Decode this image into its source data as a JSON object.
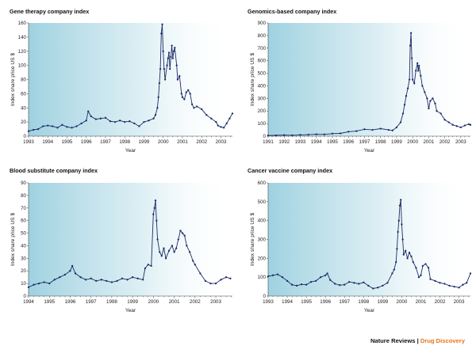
{
  "footer": {
    "journal": "Nature Reviews",
    "separator": " | ",
    "section": "Drug Discovery"
  },
  "colors": {
    "series": "#1b2b66",
    "panel_start": "#7fc2d6",
    "panel_end": "#ffffff",
    "footer_accent": "#e8741a"
  },
  "chart_data": [
    {
      "id": "gene",
      "type": "line",
      "title": "Gene therapy company index",
      "xlabel": "Year",
      "ylabel": "Index share price US $",
      "xlim": [
        1993.0,
        2003.6
      ],
      "ylim": [
        0,
        160
      ],
      "yticks": [
        0,
        20,
        40,
        60,
        80,
        100,
        120,
        140,
        160
      ],
      "xticks": [
        "1993",
        "1994",
        "1995",
        "1996",
        "1997",
        "1998",
        "1999",
        "2000",
        "2001",
        "2002",
        "2003"
      ],
      "x": [
        1993.0,
        1993.25,
        1993.5,
        1993.75,
        1994.0,
        1994.25,
        1994.5,
        1994.75,
        1995.0,
        1995.25,
        1995.5,
        1995.75,
        1996.0,
        1996.1,
        1996.25,
        1996.5,
        1996.75,
        1997.0,
        1997.25,
        1997.5,
        1997.75,
        1998.0,
        1998.25,
        1998.5,
        1998.75,
        1999.0,
        1999.25,
        1999.5,
        1999.6,
        1999.7,
        1999.75,
        1999.8,
        1999.85,
        1999.9,
        1999.95,
        2000.0,
        2000.05,
        2000.1,
        2000.2,
        2000.25,
        2000.3,
        2000.35,
        2000.4,
        2000.45,
        2000.5,
        2000.55,
        2000.6,
        2000.7,
        2000.75,
        2000.85,
        2000.95,
        2001.0,
        2001.1,
        2001.2,
        2001.3,
        2001.4,
        2001.5,
        2001.6,
        2001.75,
        2002.0,
        2002.25,
        2002.5,
        2002.75,
        2002.85,
        2003.0,
        2003.15,
        2003.3,
        2003.45,
        2003.6
      ],
      "y": [
        7,
        9,
        10,
        14,
        15,
        14,
        12,
        16,
        13,
        12,
        14,
        18,
        22,
        35,
        28,
        24,
        25,
        26,
        21,
        20,
        22,
        20,
        21,
        18,
        14,
        20,
        22,
        25,
        30,
        40,
        55,
        75,
        95,
        145,
        158,
        120,
        95,
        80,
        100,
        110,
        118,
        95,
        112,
        128,
        110,
        120,
        125,
        100,
        80,
        85,
        60,
        55,
        52,
        62,
        65,
        60,
        45,
        40,
        42,
        38,
        30,
        25,
        20,
        15,
        13,
        12,
        18,
        25,
        32
      ]
    },
    {
      "id": "genomics",
      "type": "line",
      "title": "Genomics-based company index",
      "xlabel": "Year",
      "ylabel": "Index share price US $",
      "xlim": [
        1991.0,
        2003.6
      ],
      "ylim": [
        0,
        900
      ],
      "yticks": [
        0,
        100,
        200,
        300,
        400,
        500,
        600,
        700,
        800,
        900
      ],
      "xticks": [
        "1991",
        "1992",
        "1993",
        "1994",
        "1995",
        "1996",
        "1997",
        "1998",
        "1999",
        "2000",
        "2001",
        "2002",
        "2003"
      ],
      "x": [
        1991.0,
        1991.5,
        1992.0,
        1992.5,
        1993.0,
        1993.5,
        1994.0,
        1994.5,
        1995.0,
        1995.5,
        1996.0,
        1996.5,
        1997.0,
        1997.5,
        1998.0,
        1998.5,
        1998.75,
        1999.0,
        1999.25,
        1999.4,
        1999.5,
        1999.6,
        1999.7,
        1999.8,
        1999.85,
        1999.9,
        1999.95,
        2000.0,
        2000.1,
        2000.2,
        2000.3,
        2000.35,
        2000.4,
        2000.5,
        2000.6,
        2000.75,
        2000.9,
        2001.0,
        2001.1,
        2001.25,
        2001.4,
        2001.5,
        2001.75,
        2002.0,
        2002.25,
        2002.5,
        2002.75,
        2003.0,
        2003.25,
        2003.5,
        2003.6
      ],
      "y": [
        5,
        6,
        8,
        7,
        10,
        12,
        15,
        14,
        20,
        22,
        35,
        40,
        55,
        50,
        60,
        50,
        45,
        70,
        110,
        180,
        250,
        320,
        380,
        450,
        720,
        820,
        620,
        450,
        420,
        520,
        580,
        520,
        560,
        480,
        400,
        350,
        300,
        220,
        280,
        300,
        260,
        200,
        180,
        130,
        110,
        90,
        80,
        70,
        85,
        95,
        90
      ]
    },
    {
      "id": "blood",
      "type": "line",
      "title": "Blood substitute company index",
      "xlabel": "Year",
      "ylabel": "Index share price US $",
      "xlim": [
        1994.0,
        2003.8
      ],
      "ylim": [
        0,
        90
      ],
      "yticks": [
        0,
        10,
        20,
        30,
        40,
        50,
        60,
        70,
        80,
        90
      ],
      "xticks": [
        "1994",
        "1995",
        "1996",
        "1997",
        "1998",
        "1999",
        "2000",
        "2001",
        "2002",
        "2003"
      ],
      "x": [
        1994.0,
        1994.25,
        1994.5,
        1994.75,
        1995.0,
        1995.25,
        1995.5,
        1995.75,
        1996.0,
        1996.1,
        1996.25,
        1996.5,
        1996.75,
        1997.0,
        1997.25,
        1997.5,
        1997.75,
        1998.0,
        1998.25,
        1998.5,
        1998.75,
        1999.0,
        1999.25,
        1999.5,
        1999.6,
        1999.75,
        1999.9,
        2000.0,
        2000.05,
        2000.1,
        2000.15,
        2000.2,
        2000.3,
        2000.4,
        2000.5,
        2000.6,
        2000.75,
        2000.9,
        2001.0,
        2001.1,
        2001.2,
        2001.3,
        2001.4,
        2001.5,
        2001.6,
        2001.75,
        2001.9,
        2002.0,
        2002.25,
        2002.5,
        2002.75,
        2003.0,
        2003.25,
        2003.5,
        2003.7
      ],
      "y": [
        7,
        9,
        10,
        11,
        10,
        13,
        15,
        17,
        20,
        24,
        18,
        15,
        13,
        14,
        12,
        13,
        12,
        11,
        12,
        14,
        13,
        15,
        14,
        13,
        22,
        25,
        24,
        65,
        70,
        76,
        60,
        45,
        35,
        32,
        38,
        30,
        36,
        40,
        35,
        38,
        45,
        52,
        50,
        48,
        40,
        35,
        28,
        25,
        18,
        12,
        10,
        10,
        13,
        15,
        14
      ]
    },
    {
      "id": "cancer",
      "type": "line",
      "title": "Cancer vaccine company index",
      "xlabel": "Year",
      "ylabel": "Index share price US $",
      "xlim": [
        1993.0,
        2003.6
      ],
      "ylim": [
        0,
        600
      ],
      "yticks": [
        0,
        100,
        200,
        300,
        400,
        500,
        600
      ],
      "xticks": [
        "1993",
        "1994",
        "1995",
        "1996",
        "1997",
        "1998",
        "1999",
        "2000",
        "2001",
        "2002",
        "2003"
      ],
      "x": [
        1993.0,
        1993.25,
        1993.5,
        1993.75,
        1994.0,
        1994.25,
        1994.5,
        1994.75,
        1995.0,
        1995.25,
        1995.5,
        1995.75,
        1996.0,
        1996.1,
        1996.25,
        1996.5,
        1996.75,
        1997.0,
        1997.25,
        1997.5,
        1997.75,
        1998.0,
        1998.25,
        1998.5,
        1998.75,
        1999.0,
        1999.25,
        1999.5,
        1999.6,
        1999.7,
        1999.75,
        1999.8,
        1999.85,
        1999.9,
        1999.95,
        2000.0,
        2000.05,
        2000.1,
        2000.2,
        2000.3,
        2000.4,
        2000.5,
        2000.6,
        2000.75,
        2000.9,
        2001.0,
        2001.1,
        2001.25,
        2001.4,
        2001.5,
        2001.75,
        2002.0,
        2002.25,
        2002.5,
        2002.75,
        2003.0,
        2003.2,
        2003.4,
        2003.6
      ],
      "y": [
        105,
        110,
        115,
        100,
        80,
        60,
        55,
        62,
        60,
        75,
        80,
        100,
        110,
        120,
        85,
        65,
        58,
        60,
        75,
        70,
        65,
        72,
        55,
        40,
        45,
        55,
        70,
        120,
        140,
        180,
        250,
        340,
        400,
        480,
        510,
        380,
        300,
        220,
        240,
        200,
        230,
        210,
        180,
        150,
        100,
        110,
        160,
        170,
        150,
        90,
        80,
        70,
        65,
        55,
        50,
        45,
        60,
        70,
        120
      ]
    }
  ]
}
